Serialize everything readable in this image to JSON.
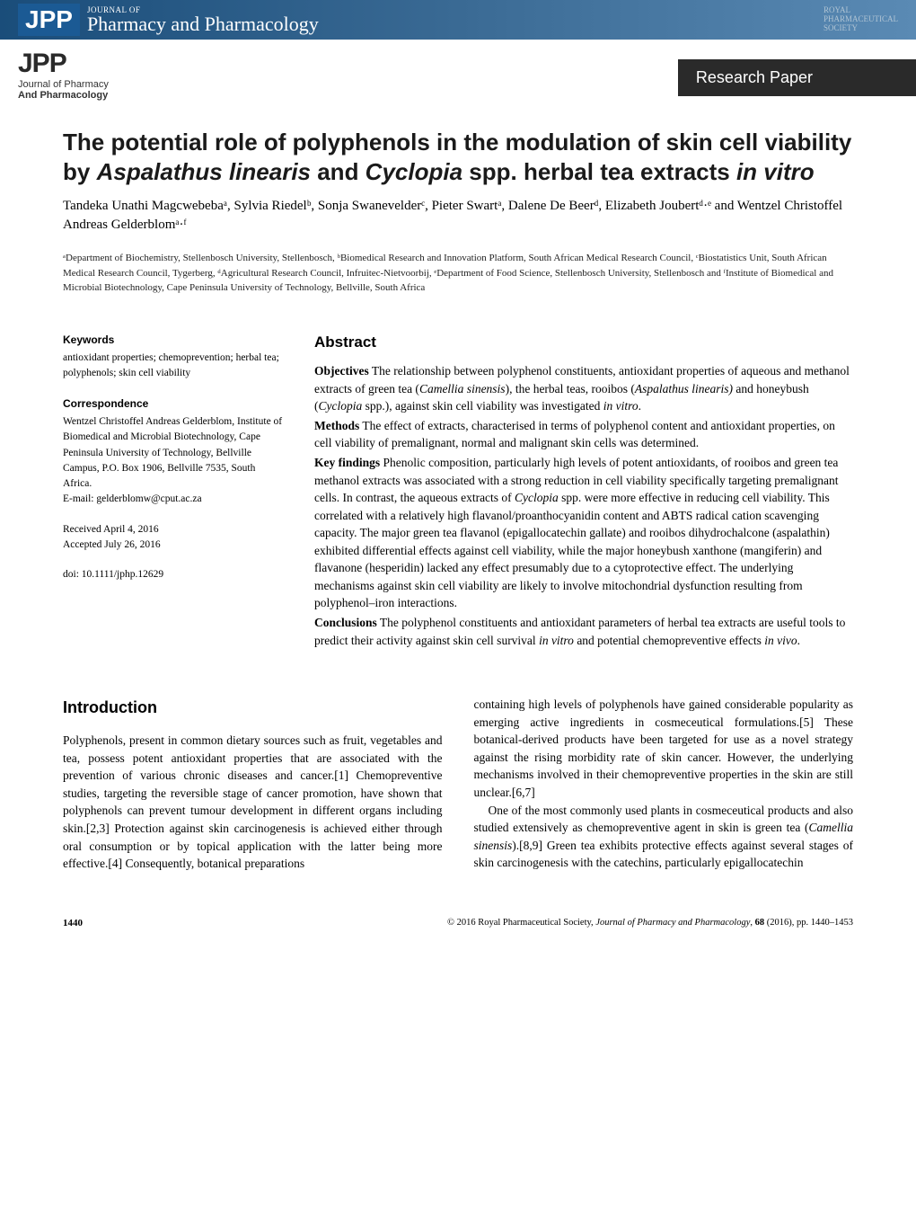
{
  "header": {
    "jpp_badge": "JPP",
    "journal_of": "JOURNAL OF",
    "pharm_title": "Pharmacy and Pharmacology",
    "royal_line1": "ROYAL",
    "royal_line2": "PHARMACEUTICAL",
    "royal_line3": "SOCIETY"
  },
  "sub_header": {
    "jpp": "JPP",
    "line1": "Journal of Pharmacy",
    "line2": "And Pharmacology",
    "badge": "Research Paper"
  },
  "title": {
    "part1": "The potential role of polyphenols in the modulation of skin cell viability by ",
    "italic1": "Aspalathus linearis",
    "part2": " and ",
    "italic2": "Cyclopia",
    "part3": " spp. herbal tea extracts ",
    "italic3": "in vitro"
  },
  "authors": "Tandeka Unathi Magcwebebaᵃ, Sylvia Riedelᵇ, Sonja Swanevelderᶜ, Pieter Swartᵃ, Dalene De Beerᵈ, Elizabeth Joubertᵈ·ᵉ and Wentzel Christoffel Andreas Gelderblomᵃ·ᶠ",
  "affiliations": "ᵃDepartment of Biochemistry, Stellenbosch University, Stellenbosch, ᵇBiomedical Research and Innovation Platform, South African Medical Research Council, ᶜBiostatistics Unit, South African Medical Research Council, Tygerberg, ᵈAgricultural Research Council, Infruitec-Nietvoorbij, ᵉDepartment of Food Science, Stellenbosch University, Stellenbosch and ᶠInstitute of Biomedical and Microbial Biotechnology, Cape Peninsula University of Technology, Bellville, South Africa",
  "sidebar": {
    "keywords_heading": "Keywords",
    "keywords": "antioxidant properties; chemoprevention; herbal tea; polyphenols; skin cell viability",
    "corr_heading": "Correspondence",
    "corr_text": "Wentzel Christoffel Andreas Gelderblom, Institute of Biomedical and Microbial Biotechnology, Cape Peninsula University of Technology, Bellville Campus, P.O. Box 1906, Bellville 7535, South Africa.",
    "corr_email": "E-mail: gelderblomw@cput.ac.za",
    "received": "Received April 4, 2016",
    "accepted": "Accepted July 26, 2016",
    "doi": "doi: 10.1111/jphp.12629"
  },
  "abstract": {
    "heading": "Abstract",
    "objectives_label": "Objectives",
    "objectives_pre": " The relationship between polyphenol constituents, antioxidant properties of aqueous and methanol extracts of green tea (",
    "objectives_i1": "Camellia sinensis",
    "objectives_mid1": "), the herbal teas, rooibos (",
    "objectives_i2": "Aspalathus linearis)",
    "objectives_mid2": " and honeybush (",
    "objectives_i3": "Cyclopia",
    "objectives_mid3": " spp.), against skin cell viability was investigated ",
    "objectives_i4": "in vitro",
    "objectives_end": ".",
    "methods_label": "Methods",
    "methods": " The effect of extracts, characterised in terms of polyphenol content and antioxidant properties, on cell viability of premalignant, normal and malignant skin cells was determined.",
    "findings_label": "Key findings",
    "findings_pre": " Phenolic composition, particularly high levels of potent antioxidants, of rooibos and green tea methanol extracts was associated with a strong reduction in cell viability specifically targeting premalignant cells. In contrast, the aqueous extracts of ",
    "findings_i1": "Cyclopia",
    "findings_post": " spp. were more effective in reducing cell viability. This correlated with a relatively high flavanol/proanthocyanidin content and ABTS radical cation scavenging capacity. The major green tea flavanol (epigallocatechin gallate) and rooibos dihydrochalcone (aspalathin) exhibited differential effects against cell viability, while the major honeybush xanthone (mangiferin) and flavanone (hesperidin) lacked any effect presumably due to a cytoprotective effect. The underlying mechanisms against skin cell viability are likely to involve mitochondrial dysfunction resulting from polyphenol–iron interactions.",
    "conclusions_label": "Conclusions",
    "conclusions_pre": " The polyphenol constituents and antioxidant parameters of herbal tea extracts are useful tools to predict their activity against skin cell survival ",
    "conclusions_i1": "in vitro",
    "conclusions_mid": " and potential chemopreventive effects ",
    "conclusions_i2": "in vivo",
    "conclusions_end": "."
  },
  "intro": {
    "heading": "Introduction",
    "col1": "Polyphenols, present in common dietary sources such as fruit, vegetables and tea, possess potent antioxidant properties that are associated with the prevention of various chronic diseases and cancer.[1] Chemopreventive studies, targeting the reversible stage of cancer promotion, have shown that polyphenols can prevent tumour development in different organs including skin.[2,3] Protection against skin carcinogenesis is achieved either through oral consumption or by topical application with the latter being more effective.[4] Consequently, botanical preparations",
    "col2_p1": "containing high levels of polyphenols have gained considerable popularity as emerging active ingredients in cosmeceutical formulations.[5] These botanical-derived products have been targeted for use as a novel strategy against the rising morbidity rate of skin cancer. However, the underlying mechanisms involved in their chemopreventive properties in the skin are still unclear.[6,7]",
    "col2_p2_pre": "One of the most commonly used plants in cosmeceutical products and also studied extensively as chemopreventive agent in skin is green tea (",
    "col2_p2_i": "Camellia sinensis",
    "col2_p2_post": ").[8,9] Green tea exhibits protective effects against several stages of skin carcinogenesis with the catechins, particularly epigallocatechin"
  },
  "footer": {
    "page": "1440",
    "copyright_pre": "© 2016 Royal Pharmaceutical Society, ",
    "copyright_i": "Journal of Pharmacy and Pharmacology",
    "copyright_post": ", ",
    "copyright_vol": "68",
    "copyright_pages": " (2016), pp. 1440–1453"
  }
}
